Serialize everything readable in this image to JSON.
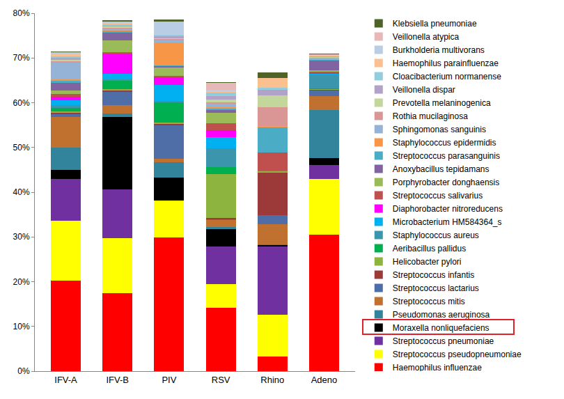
{
  "chart_data": {
    "type": "bar",
    "stacked": true,
    "grid": false,
    "legend": "right",
    "categories": [
      "IFV-A",
      "IFV-B",
      "PIV",
      "RSV",
      "Rhino",
      "Adeno"
    ],
    "ylim": [
      0,
      80
    ],
    "yticks": [
      {
        "value": 0,
        "label": "0%"
      },
      {
        "value": 10,
        "label": "10%"
      },
      {
        "value": 20,
        "label": "20%"
      },
      {
        "value": 30,
        "label": "30%"
      },
      {
        "value": 40,
        "label": "40%"
      },
      {
        "value": 50,
        "label": "50%"
      },
      {
        "value": 60,
        "label": "60%"
      },
      {
        "value": 70,
        "label": "70%"
      },
      {
        "value": 80,
        "label": "80%"
      }
    ],
    "series": [
      {
        "name": "Haemophilus influenzae",
        "color": "#ff0000",
        "values": [
          20.2,
          17.4,
          29.9,
          14.1,
          3.3,
          30.5
        ]
      },
      {
        "name": "Streptococcus pseudopneumoniae",
        "color": "#ffff00",
        "values": [
          13.4,
          12.4,
          8.2,
          5.4,
          9.3,
          12.5
        ]
      },
      {
        "name": "Streptococcus pneumoniae",
        "color": "#7030a0",
        "values": [
          9.4,
          10.9,
          0,
          8.4,
          15.2,
          3.1
        ]
      },
      {
        "name": "Moraxella nonliquefaciens",
        "color": "#000000",
        "values": [
          2.0,
          16.1,
          5.1,
          3.9,
          0.3,
          1.6
        ]
      },
      {
        "name": "Pseudomonas aeruginosa",
        "color": "#31849b",
        "values": [
          5.0,
          0.8,
          3.5,
          0.4,
          0.3,
          10.6
        ]
      },
      {
        "name": "Streptococcus mitis",
        "color": "#c0712f",
        "values": [
          6.8,
          1.8,
          0.8,
          1.6,
          4.5,
          3.2
        ]
      },
      {
        "name": "Streptococcus lactarius",
        "color": "#4f6ea8",
        "values": [
          0.6,
          3.0,
          7.5,
          0.2,
          2.0,
          1.2
        ]
      },
      {
        "name": "Streptococcus infantis",
        "color": "#9b3a38",
        "values": [
          0.3,
          0.3,
          0.3,
          0.2,
          9.5,
          0.2
        ]
      },
      {
        "name": "Helicobacter pylori",
        "color": "#8db43e",
        "values": [
          0.4,
          0.4,
          0.3,
          9.8,
          0.2,
          0.2
        ]
      },
      {
        "name": "Aeribacillus pallidus",
        "color": "#00b050",
        "values": [
          0.8,
          1.8,
          4.5,
          1.6,
          0,
          0.1
        ]
      },
      {
        "name": "Staphylococcus aureus",
        "color": "#3a95ad",
        "values": [
          0.5,
          0.3,
          0.3,
          4.2,
          0.2,
          3.0
        ]
      },
      {
        "name": "Microbacterium HM584364_s",
        "color": "#00b0f0",
        "values": [
          1.2,
          1.2,
          3.5,
          2.5,
          0,
          0.2
        ]
      },
      {
        "name": "Diaphorobacter nitroreducens",
        "color": "#ff00ff",
        "values": [
          0.8,
          4.6,
          1.8,
          1.5,
          0,
          0.2
        ]
      },
      {
        "name": "Streptococcus salivarius",
        "color": "#c0504d",
        "values": [
          0.5,
          0.3,
          0.3,
          1.6,
          4.0,
          0.4
        ]
      },
      {
        "name": "Porphyrobacter donghaensis",
        "color": "#9bbb59",
        "values": [
          0.8,
          2.7,
          1.8,
          2.4,
          0,
          0.2
        ]
      },
      {
        "name": "Anoxybacillus tepidamans",
        "color": "#8064a2",
        "values": [
          1.8,
          1.6,
          0.3,
          0.5,
          0,
          2.2
        ]
      },
      {
        "name": "Streptococcus parasanguinis",
        "color": "#4bacc6",
        "values": [
          0.4,
          0.4,
          0.3,
          0.4,
          5.6,
          0.2
        ]
      },
      {
        "name": "Staphylococcus epidermidis",
        "color": "#f79646",
        "values": [
          0.3,
          0.2,
          5.0,
          0.3,
          0.2,
          0.2
        ]
      },
      {
        "name": "Sphingomonas sanguinis",
        "color": "#95b3d7",
        "values": [
          3.7,
          0.4,
          0.6,
          0.8,
          0.2,
          0.2
        ]
      },
      {
        "name": "Rothia mucilaginosa",
        "color": "#d99694",
        "values": [
          0.3,
          0.2,
          0.2,
          0.3,
          4.2,
          0.1
        ]
      },
      {
        "name": "Prevotella melaninogenica",
        "color": "#c3d69b",
        "values": [
          0.3,
          0.2,
          0.2,
          0.6,
          2.6,
          0.1
        ]
      },
      {
        "name": "Veillonella dispar",
        "color": "#b3a2c7",
        "values": [
          0.5,
          0.2,
          0.4,
          0.8,
          1.3,
          0.1
        ]
      },
      {
        "name": "Cloacibacterium normanense",
        "color": "#93cddd",
        "values": [
          0.4,
          0.3,
          0.3,
          0.8,
          0.4,
          0.1
        ]
      },
      {
        "name": "Haemophilus parainfluenzae",
        "color": "#fac090",
        "values": [
          0.4,
          0.2,
          0.3,
          0.3,
          2.2,
          0.2
        ]
      },
      {
        "name": "Burkholderia multivorans",
        "color": "#b9cde5",
        "values": [
          0.3,
          0.3,
          2.5,
          0.3,
          0,
          0.1
        ]
      },
      {
        "name": "Veillonella atypica",
        "color": "#e6b9b8",
        "values": [
          0.2,
          0.2,
          0.2,
          1.5,
          0,
          0.1
        ]
      },
      {
        "name": "Klebsiella pneumoniae",
        "color": "#4f6228",
        "values": [
          0.2,
          0.3,
          0.5,
          0.2,
          1.2,
          0.1
        ]
      }
    ]
  }
}
